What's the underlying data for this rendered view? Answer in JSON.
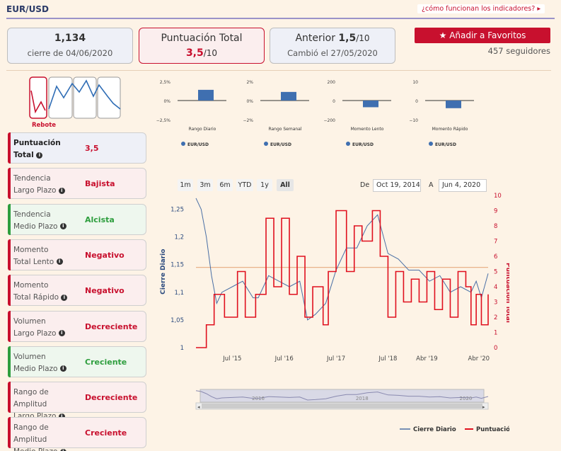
{
  "header": {
    "title": "EUR/USD",
    "help_link": "¿cómo funcionan los indicadores?"
  },
  "cards": {
    "close": {
      "value": "1,134",
      "caption": "cierre de 04/06/2020"
    },
    "score": {
      "label": "Puntuación Total",
      "value": "3,5",
      "denominator": "/10"
    },
    "previous": {
      "label": "Anterior",
      "value": "1,5",
      "denominator": "/10",
      "caption": "Cambió el 27/05/2020"
    }
  },
  "favorites": {
    "button_label": "Añadir a Favoritos",
    "followers": "457 seguidores"
  },
  "pattern": {
    "label": "Rebote"
  },
  "indicators": [
    {
      "line1": "Puntuación",
      "line2": "Total",
      "value": "3,5",
      "tone": "neg",
      "bar": "#c8102e",
      "bg": "#eef0f7"
    },
    {
      "line1": "Tendencia",
      "line2": "Largo Plazo",
      "value": "Bajista",
      "tone": "neg",
      "bar": "#c8102e",
      "bg": "#fbeeee"
    },
    {
      "line1": "Tendencia",
      "line2": "Medio Plazo",
      "value": "Alcista",
      "tone": "pos",
      "bar": "#2e9e3e",
      "bg": "#eef7ee"
    },
    {
      "line1": "Momento",
      "line2": "Total Lento",
      "value": "Negativo",
      "tone": "neg",
      "bar": "#c8102e",
      "bg": "#fbeeee"
    },
    {
      "line1": "Momento",
      "line2": "Total Rápido",
      "value": "Negativo",
      "tone": "neg",
      "bar": "#c8102e",
      "bg": "#fbeeee"
    },
    {
      "line1": "Volumen",
      "line2": "Largo Plazo",
      "value": "Decreciente",
      "tone": "neg",
      "bar": "#c8102e",
      "bg": "#fbeeee"
    },
    {
      "line1": "Volumen",
      "line2": "Medio Plazo",
      "value": "Creciente",
      "tone": "pos",
      "bar": "#2e9e3e",
      "bg": "#eef7ee"
    },
    {
      "line1": "Rango de Amplitud",
      "line2": "Largo Plazo",
      "value": "Decreciente",
      "tone": "neg",
      "bar": "#c8102e",
      "bg": "#fbeeee"
    },
    {
      "line1": "Rango de Amplitud",
      "line2": "Medio Plazo",
      "value": "Creciente",
      "tone": "neg",
      "bar": "#c8102e",
      "bg": "#fbeeee"
    }
  ],
  "range_selector": {
    "buttons": [
      "1m",
      "3m",
      "6m",
      "YTD",
      "1y",
      "All"
    ],
    "selected": "All",
    "from_label": "De",
    "from_value": "Oct 19, 2014",
    "to_label": "A",
    "to_value": "Jun 4, 2020"
  },
  "chart_data": [
    {
      "type": "bar",
      "title": "Rango Diario",
      "series_name": "EUR/USD",
      "ytick_labels": [
        "2,5%",
        "0%",
        "−2,5%"
      ],
      "ylim": [
        -2.5,
        2.5
      ],
      "values": [
        1.4
      ]
    },
    {
      "type": "bar",
      "title": "Rango Semanal",
      "series_name": "EUR/USD",
      "ytick_labels": [
        "2%",
        "0%",
        "−2%"
      ],
      "ylim": [
        -2,
        2
      ],
      "values": [
        0.9
      ]
    },
    {
      "type": "bar",
      "title": "Momento Lento",
      "series_name": "EUR/USD",
      "ytick_labels": [
        "200",
        "0",
        "−200"
      ],
      "ylim": [
        -200,
        200
      ],
      "values": [
        -70
      ]
    },
    {
      "type": "bar",
      "title": "Momento Rápido",
      "series_name": "EUR/USD",
      "ytick_labels": [
        "10",
        "0",
        "−10"
      ],
      "ylim": [
        -10,
        10
      ],
      "values": [
        -4
      ]
    },
    {
      "type": "line",
      "title": "",
      "ylabel_left": "Cierre Diario",
      "ylabel_right": "Puntuación Total",
      "ylim_left": [
        1,
        1.275
      ],
      "ylim_right": [
        0,
        10
      ],
      "yticks_left": [
        "1",
        "1,05",
        "1,1",
        "1,15",
        "1,2",
        "1,25"
      ],
      "yticks_right": [
        "0",
        "1",
        "2",
        "3",
        "4",
        "5",
        "6",
        "7",
        "8",
        "9",
        "10"
      ],
      "xticks": [
        "Jul '15",
        "Jul '16",
        "Jul '17",
        "Jul '18",
        "Abr '19",
        "Abr '20"
      ],
      "x_start": 2014.8,
      "x_end": 2020.43,
      "xtick_positions": [
        2015.5,
        2016.5,
        2017.5,
        2018.5,
        2019.25,
        2020.25
      ],
      "reference_line": 1.145,
      "navigator_labels": [
        "2016",
        "2018",
        "2020"
      ],
      "navigator_positions": [
        2016,
        2018,
        2020
      ],
      "series": [
        {
          "name": "Cierre Diario",
          "color": "#4a6fa5",
          "x": [
            2014.8,
            2014.9,
            2015.0,
            2015.1,
            2015.2,
            2015.3,
            2015.5,
            2015.7,
            2015.9,
            2016.0,
            2016.2,
            2016.4,
            2016.6,
            2016.8,
            2016.95,
            2017.1,
            2017.3,
            2017.5,
            2017.7,
            2017.9,
            2018.1,
            2018.3,
            2018.5,
            2018.7,
            2018.9,
            2019.1,
            2019.3,
            2019.5,
            2019.7,
            2019.9,
            2020.1,
            2020.2,
            2020.3,
            2020.43
          ],
          "values": [
            1.27,
            1.25,
            1.2,
            1.13,
            1.08,
            1.1,
            1.11,
            1.12,
            1.09,
            1.09,
            1.13,
            1.12,
            1.11,
            1.12,
            1.05,
            1.06,
            1.08,
            1.14,
            1.18,
            1.18,
            1.22,
            1.24,
            1.17,
            1.16,
            1.14,
            1.14,
            1.12,
            1.13,
            1.1,
            1.11,
            1.1,
            1.12,
            1.09,
            1.134
          ]
        },
        {
          "name": "Puntuación",
          "color": "#e0101e",
          "x": [
            2014.8,
            2015.0,
            2015.15,
            2015.35,
            2015.6,
            2015.75,
            2015.95,
            2016.15,
            2016.3,
            2016.45,
            2016.6,
            2016.75,
            2016.9,
            2017.05,
            2017.25,
            2017.35,
            2017.5,
            2017.7,
            2017.85,
            2018.0,
            2018.2,
            2018.35,
            2018.5,
            2018.65,
            2018.8,
            2018.95,
            2019.1,
            2019.25,
            2019.4,
            2019.55,
            2019.7,
            2019.85,
            2020.0,
            2020.1,
            2020.2,
            2020.3,
            2020.43
          ],
          "values": [
            0,
            1.5,
            3.5,
            2,
            5,
            2,
            3.5,
            8.5,
            4,
            8.5,
            3.5,
            6,
            2,
            4,
            1.5,
            5,
            9,
            5,
            8,
            7,
            9,
            6,
            2,
            5,
            3,
            4.5,
            3,
            5,
            2.5,
            4.5,
            2,
            5,
            4,
            1.5,
            3.5,
            1.5,
            3.5
          ]
        }
      ],
      "legend": [
        "Cierre Diario",
        "Puntuación"
      ]
    }
  ]
}
